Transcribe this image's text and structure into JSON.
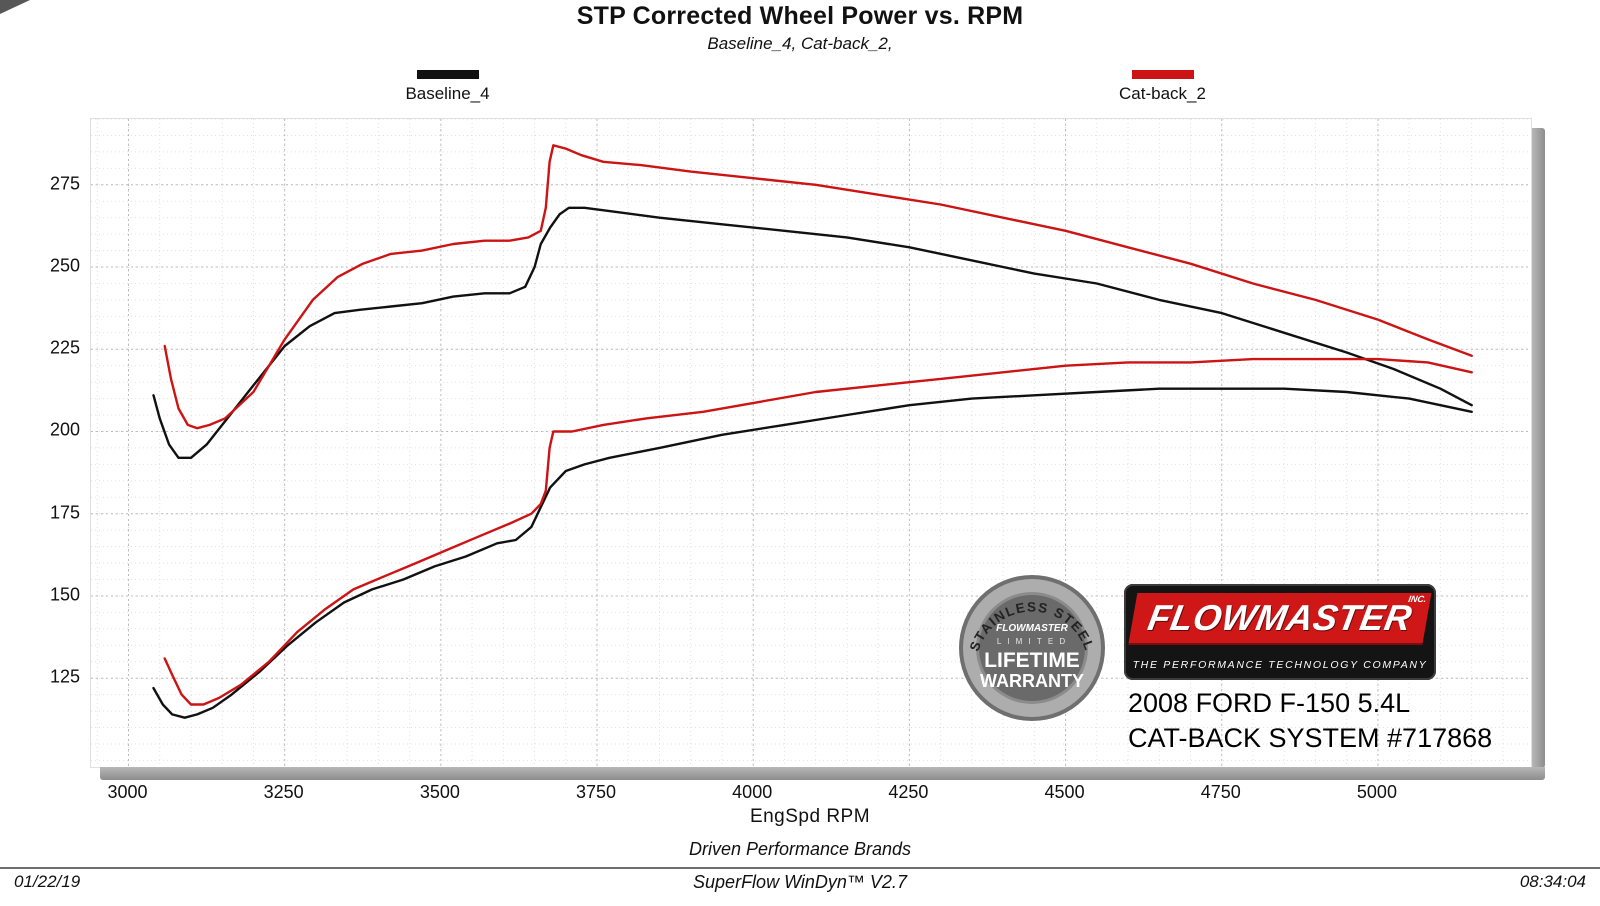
{
  "header": {
    "title": "STP Corrected Wheel Power vs. RPM",
    "subtitle": "Baseline_4, Cat-back_2,"
  },
  "branding": {
    "logo_text": "FLOWMASTER",
    "logo_inc": "INC.",
    "logo_tagline": "THE PERFORMANCE TECHNOLOGY COMPANY",
    "badge": {
      "arc_top": "STAINLESS STEEL",
      "brand": "FLOWMASTER",
      "limited": "L I M I T E D",
      "lifetime": "LIFETIME",
      "warranty": "WARRANTY"
    },
    "vehicle_line1": "2008 FORD F-150 5.4L",
    "vehicle_line2": "CAT-BACK SYSTEM #717868"
  },
  "footer": {
    "line1": "Driven Performance Brands",
    "line2": "SuperFlow WinDyn™ V2.7",
    "date": "01/22/19",
    "time": "08:34:04"
  },
  "chart_data": {
    "type": "line",
    "title": "STP Corrected Wheel Power vs. RPM",
    "subtitle": "Baseline_4, Cat-back_2,",
    "xlabel": "EngSpd RPM",
    "ylabel": "",
    "xlim": [
      2940,
      5245
    ],
    "ylim": [
      98,
      295
    ],
    "x_ticks": [
      3000,
      3250,
      3500,
      3750,
      4000,
      4250,
      4500,
      4750,
      5000
    ],
    "y_ticks": [
      125,
      150,
      175,
      200,
      225,
      250,
      275
    ],
    "grid": true,
    "legend_position": "top",
    "legend": [
      {
        "label": "Baseline_4",
        "color": "#111111"
      },
      {
        "label": "Cat-back_2",
        "color": "#cc1414"
      }
    ],
    "series": [
      {
        "id": "baseline-4-upper-torque",
        "name": "Baseline_4 (upper curve, torque lb-ft)",
        "color": "#111111",
        "points": [
          [
            3040,
            211
          ],
          [
            3050,
            204
          ],
          [
            3065,
            196
          ],
          [
            3080,
            192
          ],
          [
            3100,
            192
          ],
          [
            3125,
            196
          ],
          [
            3150,
            202
          ],
          [
            3200,
            214
          ],
          [
            3250,
            226
          ],
          [
            3290,
            232
          ],
          [
            3330,
            236
          ],
          [
            3370,
            237
          ],
          [
            3420,
            238
          ],
          [
            3470,
            239
          ],
          [
            3520,
            241
          ],
          [
            3570,
            242
          ],
          [
            3610,
            242
          ],
          [
            3635,
            244
          ],
          [
            3650,
            250
          ],
          [
            3660,
            257
          ],
          [
            3675,
            262
          ],
          [
            3690,
            266
          ],
          [
            3705,
            268
          ],
          [
            3730,
            268
          ],
          [
            3770,
            267
          ],
          [
            3850,
            265
          ],
          [
            3950,
            263
          ],
          [
            4050,
            261
          ],
          [
            4150,
            259
          ],
          [
            4250,
            256
          ],
          [
            4350,
            252
          ],
          [
            4450,
            248
          ],
          [
            4550,
            245
          ],
          [
            4650,
            240
          ],
          [
            4750,
            236
          ],
          [
            4850,
            230
          ],
          [
            4950,
            224
          ],
          [
            5025,
            219
          ],
          [
            5100,
            213
          ],
          [
            5150,
            208
          ]
        ]
      },
      {
        "id": "cat-back-2-upper-torque",
        "name": "Cat-back_2 (upper curve, torque lb-ft)",
        "color": "#cc1414",
        "points": [
          [
            3058,
            226
          ],
          [
            3068,
            216
          ],
          [
            3080,
            207
          ],
          [
            3095,
            202
          ],
          [
            3110,
            201
          ],
          [
            3130,
            202
          ],
          [
            3155,
            204
          ],
          [
            3200,
            212
          ],
          [
            3250,
            228
          ],
          [
            3295,
            240
          ],
          [
            3335,
            247
          ],
          [
            3375,
            251
          ],
          [
            3420,
            254
          ],
          [
            3470,
            255
          ],
          [
            3520,
            257
          ],
          [
            3570,
            258
          ],
          [
            3610,
            258
          ],
          [
            3640,
            259
          ],
          [
            3660,
            261
          ],
          [
            3668,
            268
          ],
          [
            3674,
            282
          ],
          [
            3680,
            287
          ],
          [
            3700,
            286
          ],
          [
            3725,
            284
          ],
          [
            3760,
            282
          ],
          [
            3820,
            281
          ],
          [
            3900,
            279
          ],
          [
            4000,
            277
          ],
          [
            4100,
            275
          ],
          [
            4200,
            272
          ],
          [
            4300,
            269
          ],
          [
            4400,
            265
          ],
          [
            4500,
            261
          ],
          [
            4600,
            256
          ],
          [
            4700,
            251
          ],
          [
            4800,
            245
          ],
          [
            4900,
            240
          ],
          [
            5000,
            234
          ],
          [
            5080,
            228
          ],
          [
            5150,
            223
          ]
        ]
      },
      {
        "id": "baseline-4-lower-power",
        "name": "Baseline_4 (lower curve, wheel power hp)",
        "color": "#111111",
        "points": [
          [
            3040,
            122
          ],
          [
            3055,
            117
          ],
          [
            3070,
            114
          ],
          [
            3090,
            113
          ],
          [
            3110,
            114
          ],
          [
            3135,
            116
          ],
          [
            3165,
            120
          ],
          [
            3210,
            127
          ],
          [
            3255,
            135
          ],
          [
            3300,
            142
          ],
          [
            3345,
            148
          ],
          [
            3390,
            152
          ],
          [
            3440,
            155
          ],
          [
            3490,
            159
          ],
          [
            3540,
            162
          ],
          [
            3590,
            166
          ],
          [
            3620,
            167
          ],
          [
            3645,
            171
          ],
          [
            3660,
            177
          ],
          [
            3675,
            183
          ],
          [
            3700,
            188
          ],
          [
            3730,
            190
          ],
          [
            3770,
            192
          ],
          [
            3850,
            195
          ],
          [
            3950,
            199
          ],
          [
            4050,
            202
          ],
          [
            4150,
            205
          ],
          [
            4250,
            208
          ],
          [
            4350,
            210
          ],
          [
            4450,
            211
          ],
          [
            4550,
            212
          ],
          [
            4650,
            213
          ],
          [
            4750,
            213
          ],
          [
            4850,
            213
          ],
          [
            4950,
            212
          ],
          [
            5050,
            210
          ],
          [
            5150,
            206
          ]
        ]
      },
      {
        "id": "cat-back-2-lower-power",
        "name": "Cat-back_2 (lower curve, wheel power hp)",
        "color": "#cc1414",
        "points": [
          [
            3058,
            131
          ],
          [
            3070,
            126
          ],
          [
            3085,
            120
          ],
          [
            3100,
            117
          ],
          [
            3120,
            117
          ],
          [
            3145,
            119
          ],
          [
            3180,
            123
          ],
          [
            3225,
            130
          ],
          [
            3270,
            139
          ],
          [
            3315,
            146
          ],
          [
            3360,
            152
          ],
          [
            3410,
            156
          ],
          [
            3460,
            160
          ],
          [
            3510,
            164
          ],
          [
            3560,
            168
          ],
          [
            3610,
            172
          ],
          [
            3645,
            175
          ],
          [
            3660,
            178
          ],
          [
            3668,
            182
          ],
          [
            3674,
            195
          ],
          [
            3680,
            200
          ],
          [
            3710,
            200
          ],
          [
            3760,
            202
          ],
          [
            3830,
            204
          ],
          [
            3920,
            206
          ],
          [
            4010,
            209
          ],
          [
            4100,
            212
          ],
          [
            4200,
            214
          ],
          [
            4300,
            216
          ],
          [
            4400,
            218
          ],
          [
            4500,
            220
          ],
          [
            4600,
            221
          ],
          [
            4700,
            221
          ],
          [
            4800,
            222
          ],
          [
            4900,
            222
          ],
          [
            5000,
            222
          ],
          [
            5080,
            221
          ],
          [
            5150,
            218
          ]
        ]
      }
    ]
  }
}
